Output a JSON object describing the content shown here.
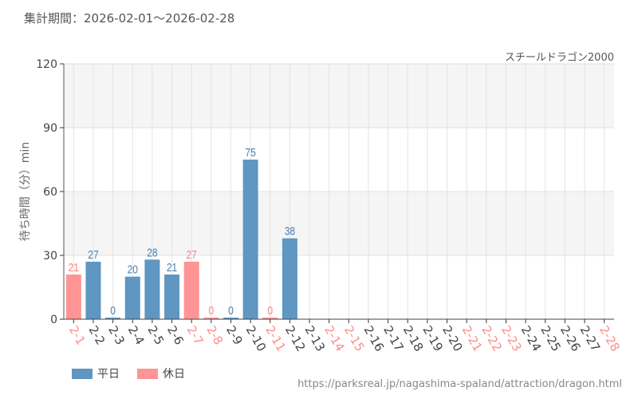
{
  "header": {
    "period": "集計期間：2026-02-01〜2026-02-28"
  },
  "chart_data": {
    "type": "bar",
    "title": "スチールドラゴン2000",
    "ylabel": "待ち時間（分）min",
    "xlabel": "",
    "ylim": [
      0,
      120
    ],
    "yticks": [
      0,
      30,
      60,
      90,
      120
    ],
    "categories": [
      "2-1",
      "2-2",
      "2-3",
      "2-4",
      "2-5",
      "2-6",
      "2-7",
      "2-8",
      "2-9",
      "2-10",
      "2-11",
      "2-12",
      "2-13",
      "2-14",
      "2-15",
      "2-16",
      "2-17",
      "2-18",
      "2-19",
      "2-20",
      "2-21",
      "2-22",
      "2-23",
      "2-24",
      "2-25",
      "2-26",
      "2-27",
      "2-28"
    ],
    "holiday": [
      true,
      false,
      false,
      false,
      false,
      false,
      true,
      true,
      false,
      false,
      true,
      false,
      false,
      true,
      true,
      false,
      false,
      false,
      false,
      false,
      true,
      true,
      true,
      false,
      false,
      false,
      false,
      true
    ],
    "values": [
      21,
      27,
      0,
      20,
      28,
      21,
      27,
      0,
      0,
      75,
      0,
      38,
      null,
      null,
      null,
      null,
      null,
      null,
      null,
      null,
      null,
      null,
      null,
      null,
      null,
      null,
      null,
      null
    ],
    "legend": [
      {
        "name": "平日",
        "color": "#4a86b8"
      },
      {
        "name": "休日",
        "color": "#ff8a8a"
      }
    ],
    "legend_position": "bottom-left",
    "grid": true
  },
  "footer": {
    "url": "https://parksreal.jp/nagashima-spaland/attraction/dragon.html"
  }
}
